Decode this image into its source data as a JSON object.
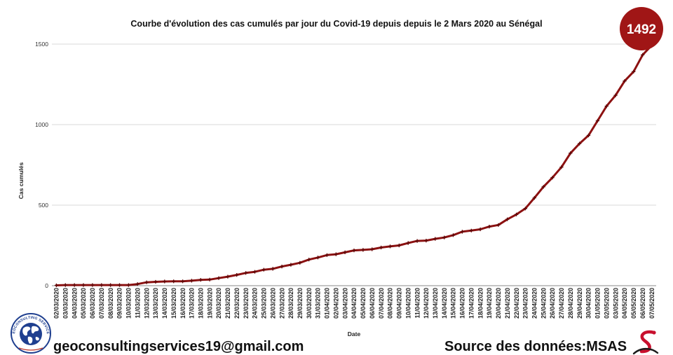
{
  "chart_data": {
    "type": "line",
    "title": "Courbe d'évolution des cas cumulés par jour du Covid-19 depuis depuis le 2 Mars 2020 au Sénégal",
    "xlabel": "Date",
    "ylabel": "Cas cumulés",
    "ylim": [
      0,
      1500
    ],
    "yticks": [
      0,
      500,
      1000,
      1500
    ],
    "grid": true,
    "x": [
      "02/03/2020",
      "03/03/2020",
      "04/03/2020",
      "05/03/2020",
      "06/03/2020",
      "07/03/2020",
      "08/03/2020",
      "09/03/2020",
      "10/03/2020",
      "11/03/2020",
      "12/03/2020",
      "13/03/2020",
      "14/03/2020",
      "15/03/2020",
      "16/03/2020",
      "17/03/2020",
      "18/03/2020",
      "19/03/2020",
      "20/03/2020",
      "21/03/2020",
      "22/03/2020",
      "23/03/2020",
      "24/03/2020",
      "25/03/2020",
      "26/03/2020",
      "27/03/2020",
      "28/03/2020",
      "29/03/2020",
      "30/03/2020",
      "31/03/2020",
      "01/04/2020",
      "02/04/2020",
      "03/04/2020",
      "04/04/2020",
      "05/04/2020",
      "06/04/2020",
      "07/04/2020",
      "08/04/2020",
      "09/04/2020",
      "10/04/2020",
      "11/04/2020",
      "12/04/2020",
      "13/04/2020",
      "14/04/2020",
      "15/04/2020",
      "16/04/2020",
      "17/04/2020",
      "18/04/2020",
      "19/04/2020",
      "20/04/2020",
      "21/04/2020",
      "22/04/2020",
      "23/04/2020",
      "24/04/2020",
      "25/04/2020",
      "26/04/2020",
      "27/04/2020",
      "28/04/2020",
      "29/04/2020",
      "30/04/2020",
      "01/05/2020",
      "02/05/2020",
      "03/05/2020",
      "04/05/2020",
      "05/05/2020",
      "06/05/2020",
      "07/05/2020"
    ],
    "series": [
      {
        "values": [
          2,
          4,
          4,
          4,
          4,
          4,
          4,
          4,
          4,
          10,
          21,
          24,
          26,
          27,
          27,
          31,
          36,
          38,
          47,
          56,
          67,
          79,
          86,
          99,
          105,
          119,
          130,
          142,
          162,
          175,
          190,
          195,
          207,
          219,
          222,
          226,
          237,
          244,
          250,
          265,
          278,
          280,
          291,
          299,
          314,
          335,
          342,
          350,
          367,
          377,
          412,
          442,
          479,
          545,
          614,
          671,
          736,
          823,
          882,
          933,
          1024,
          1115,
          1182,
          1271,
          1329,
          1433,
          1492
        ],
        "color": "#8c1111"
      }
    ]
  },
  "badge": {
    "value": "1492",
    "color": "#a01616"
  },
  "footer": {
    "email": "geoconsultingservices19@gmail.com",
    "source": "Source des données:MSAS"
  },
  "logos": {
    "left": {
      "text": "GEOCONSULTING SERVICES",
      "icon": "globe-icon",
      "color": "#1f3f8f"
    },
    "right": {
      "icon": "msas-snake-icon",
      "color": "#c8102e"
    }
  }
}
